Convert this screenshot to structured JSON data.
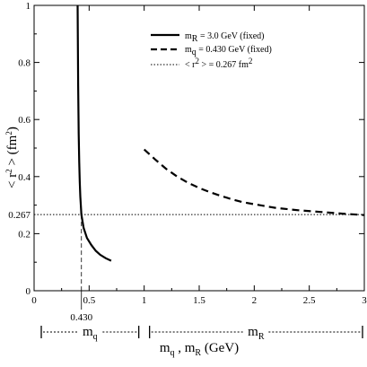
{
  "chart_data": {
    "type": "line",
    "xlabel": {
      "m1": "m",
      "s1": "q",
      "sep": " , ",
      "m2": "m",
      "s2": "R",
      "unit": " (GeV)"
    },
    "ylabel": {
      "open": "< r",
      "pow": "2",
      "close": " > (fm",
      "pow2": "2",
      "end": ")"
    },
    "xlim": [
      0,
      3
    ],
    "ylim": [
      0,
      1
    ],
    "x_ticks": [
      "0",
      "0.5",
      "1",
      "1.5",
      "2",
      "2.5",
      "3"
    ],
    "x_tick_values": [
      0,
      0.5,
      1,
      1.5,
      2,
      2.5,
      3
    ],
    "y_ticks": [
      "0",
      "0.2",
      "0.4",
      "0.6",
      "0.8",
      "1"
    ],
    "y_tick_values": [
      0,
      0.2,
      0.4,
      0.6,
      0.8,
      1
    ],
    "series": [
      {
        "legend": {
          "m": "m",
          "sub": "R",
          "text": " = 3.0 GeV    (fixed)"
        },
        "style": "solid",
        "points": [
          [
            0.395,
            1.0
          ],
          [
            0.4,
            0.72
          ],
          [
            0.405,
            0.55
          ],
          [
            0.41,
            0.45
          ],
          [
            0.415,
            0.38
          ],
          [
            0.42,
            0.33
          ],
          [
            0.43,
            0.267
          ],
          [
            0.45,
            0.22
          ],
          [
            0.48,
            0.185
          ],
          [
            0.52,
            0.16
          ],
          [
            0.56,
            0.14
          ],
          [
            0.6,
            0.126
          ],
          [
            0.65,
            0.114
          ],
          [
            0.7,
            0.105
          ]
        ]
      },
      {
        "legend": {
          "m": "m",
          "sub": "q",
          "text": " = 0.430 GeV (fixed)"
        },
        "style": "dashed",
        "points": [
          [
            1.0,
            0.495
          ],
          [
            1.1,
            0.46
          ],
          [
            1.2,
            0.427
          ],
          [
            1.3,
            0.4
          ],
          [
            1.4,
            0.378
          ],
          [
            1.5,
            0.36
          ],
          [
            1.6,
            0.345
          ],
          [
            1.7,
            0.332
          ],
          [
            1.8,
            0.32
          ],
          [
            1.9,
            0.31
          ],
          [
            2.0,
            0.303
          ],
          [
            2.2,
            0.29
          ],
          [
            2.4,
            0.282
          ],
          [
            2.6,
            0.276
          ],
          [
            2.8,
            0.27
          ],
          [
            3.0,
            0.265
          ]
        ]
      }
    ],
    "reference": {
      "legend": {
        "open": "< r",
        "pow": "2",
        "text": " > = 0.267 fm",
        "pow2": "2"
      },
      "style": "dotted",
      "y": 0.267,
      "y_label": "0.267",
      "x_marker": 0.43,
      "x_label": "0.430"
    },
    "range_labels": [
      {
        "sub": "q",
        "x_from": 0.0,
        "x_to": 1.0
      },
      {
        "sub": "R",
        "x_from": 1.0,
        "x_to": 3.0
      }
    ]
  }
}
